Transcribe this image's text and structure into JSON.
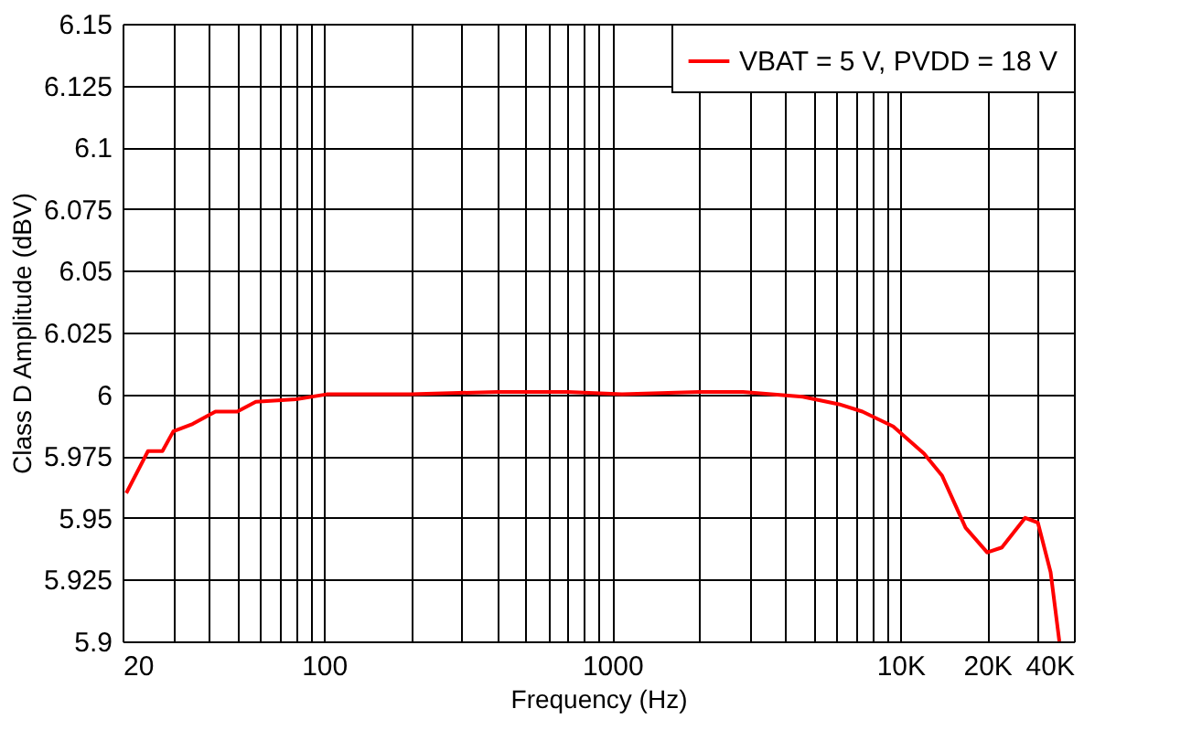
{
  "chart_data": {
    "type": "line",
    "xlabel": "Frequency (Hz)",
    "ylabel": "Class D Amplitude (dBV)",
    "log": "x",
    "grid": true,
    "legend": "top right",
    "line_style": "solid",
    "marker": "none",
    "x": [
      20.6,
      24.5,
      27.5,
      30,
      35,
      42,
      50,
      58,
      80,
      102,
      200,
      400,
      700,
      1081,
      2000,
      2845,
      4580,
      6120,
      7380,
      9440,
      12080,
      13960,
      16830,
      20000,
      22490,
      27100,
      30000,
      33200,
      35600
    ],
    "series": [
      {
        "name": "VBAT = 5 V, PVDD = 18 V",
        "color": "#ff0000",
        "values": [
          5.96,
          5.977,
          5.977,
          5.985,
          5.988,
          5.993,
          5.993,
          5.997,
          5.998,
          6.0,
          6.0,
          6.001,
          6.001,
          6.0,
          6.001,
          6.001,
          5.999,
          5.996,
          5.993,
          5.987,
          5.976,
          5.967,
          5.946,
          5.936,
          5.938,
          5.95,
          5.948,
          5.928,
          5.9
        ]
      }
    ],
    "xlim": [
      20,
      40000
    ],
    "xticks": [
      20,
      {
        "value": 30,
        "label": null
      },
      {
        "value": 40,
        "label": null
      },
      {
        "value": 50,
        "label": null
      },
      {
        "value": 60,
        "label": null
      },
      {
        "value": 70,
        "label": null
      },
      {
        "value": 80,
        "label": null
      },
      {
        "value": 90,
        "label": null
      },
      100,
      {
        "value": 200,
        "label": null
      },
      {
        "value": 300,
        "label": null
      },
      {
        "value": 400,
        "label": null
      },
      {
        "value": 500,
        "label": null
      },
      {
        "value": 600,
        "label": null
      },
      {
        "value": 700,
        "label": null
      },
      {
        "value": 800,
        "label": null
      },
      {
        "value": 900,
        "label": null
      },
      1000,
      {
        "value": 2000,
        "label": null
      },
      {
        "value": 3000,
        "label": null
      },
      {
        "value": 4000,
        "label": null
      },
      {
        "value": 5000,
        "label": null
      },
      {
        "value": 6000,
        "label": null
      },
      {
        "value": 7000,
        "label": null
      },
      {
        "value": 8000,
        "label": null
      },
      {
        "value": 9000,
        "label": null
      },
      {
        "value": 10000,
        "label": "10K"
      },
      {
        "value": 20000,
        "label": "20K"
      },
      {
        "value": 30000,
        "label": null
      },
      {
        "value": 40000,
        "label": "40K"
      }
    ],
    "ylim": [
      5.9,
      6.15
    ],
    "yticks": [
      5.9,
      5.925,
      5.95,
      5.975,
      6,
      6.025,
      6.05,
      6.075,
      6.1,
      6.125,
      6.15
    ]
  }
}
